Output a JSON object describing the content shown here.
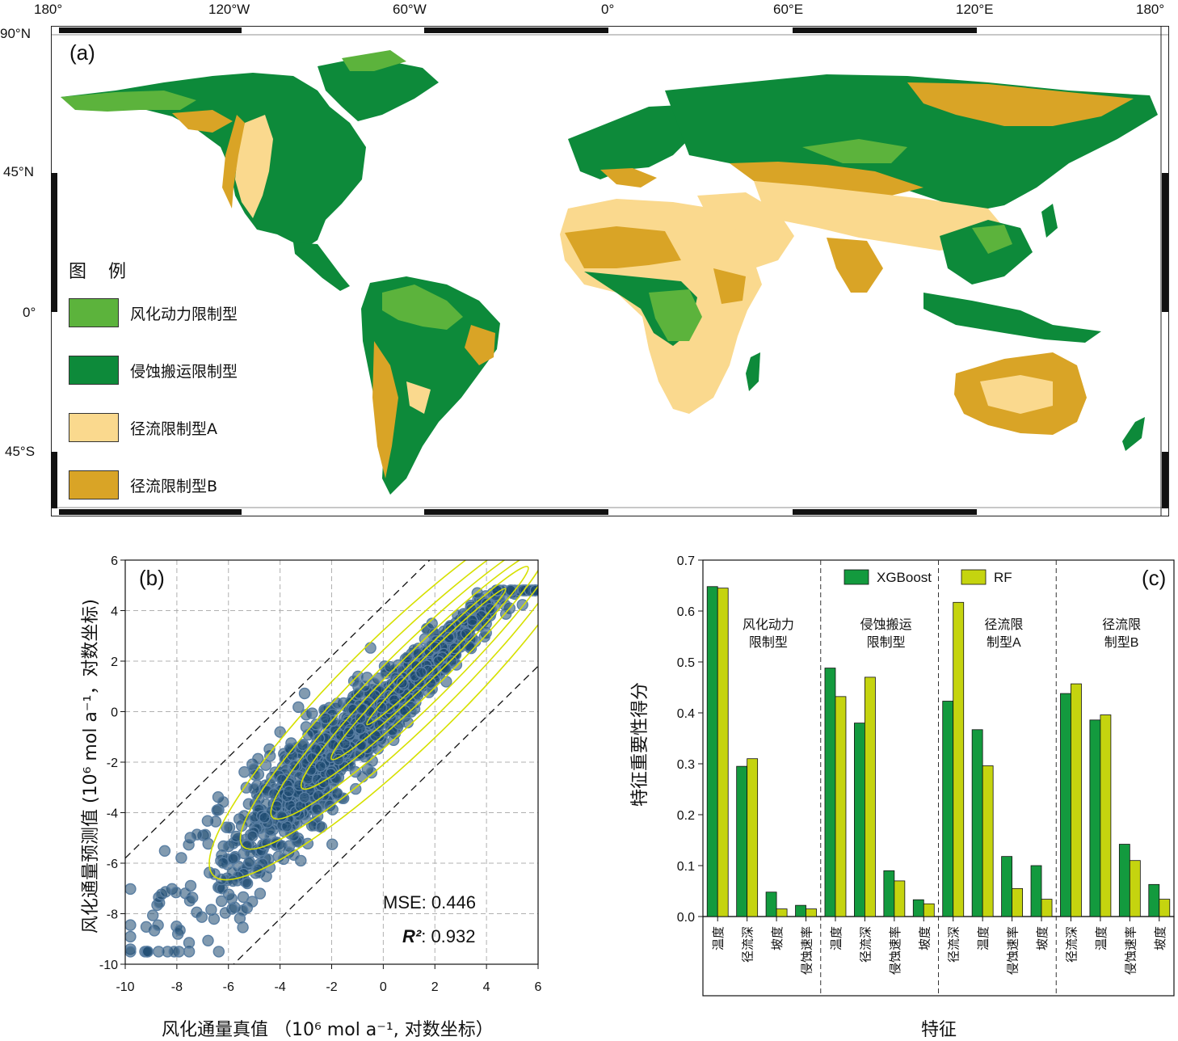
{
  "panel_a": {
    "label": "(a)",
    "lon_labels": [
      "180°",
      "120°W",
      "60°W",
      "0°",
      "60°E",
      "120°E",
      "180°"
    ],
    "lat_labels": [
      "90°N",
      "45°N",
      "0°",
      "45°S"
    ],
    "legend": {
      "title": "图 例",
      "items": [
        {
          "label": "风化动力限制型",
          "color": "#5cb33c"
        },
        {
          "label": "侵蚀搬运限制型",
          "color": "#0d8a3a"
        },
        {
          "label": "径流限制型A",
          "color": "#fad98e"
        },
        {
          "label": "径流限制型B",
          "color": "#d9a426"
        }
      ]
    }
  },
  "chart_data": [
    {
      "type": "scatter",
      "panel_label": "(b)",
      "xlabel": "风化通量真值 （10⁶ mol a⁻¹, 对数坐标）",
      "ylabel": "风化通量预测值 (10⁶ mol a⁻¹，对数坐标)",
      "xlim": [
        -10,
        6
      ],
      "ylim": [
        -10,
        6
      ],
      "xticks": [
        -10,
        -8,
        -6,
        -4,
        -2,
        0,
        2,
        4,
        6
      ],
      "yticks": [
        -10,
        -8,
        -6,
        -4,
        -2,
        0,
        2,
        4,
        6
      ],
      "grid": true,
      "mse_label": "MSE: 0.446",
      "r2_label": "R²",
      "r2_value": ": 0.932",
      "reference_lines": [
        {
          "name": "1:1 upper",
          "offset": 4.2
        },
        {
          "name": "1:1 lower",
          "offset": -4.2
        }
      ],
      "point_color": "#1c4870",
      "contour_color": "#d6e000"
    },
    {
      "type": "bar",
      "panel_label": "(c)",
      "xlabel": "特征",
      "ylabel": "特征重要性得分",
      "ylim": [
        0,
        0.7
      ],
      "yticks": [
        "0.0",
        "0.1",
        "0.2",
        "0.3",
        "0.4",
        "0.5",
        "0.6",
        "0.7"
      ],
      "legend": [
        {
          "name": "XGBoost",
          "color": "#139a3e"
        },
        {
          "name": "RF",
          "color": "#c5d40f"
        }
      ],
      "groups": [
        {
          "title_lines": [
            "风化动力",
            "限制型"
          ],
          "categories": [
            "温度",
            "径流深",
            "坡度",
            "侵蚀速率"
          ],
          "xgboost": [
            0.648,
            0.295,
            0.048,
            0.022
          ],
          "rf": [
            0.645,
            0.31,
            0.015,
            0.015
          ]
        },
        {
          "title_lines": [
            "侵蚀搬运",
            "限制型"
          ],
          "categories": [
            "温度",
            "径流深",
            "侵蚀速率",
            "坡度"
          ],
          "xgboost": [
            0.488,
            0.38,
            0.09,
            0.033
          ],
          "rf": [
            0.432,
            0.47,
            0.07,
            0.025
          ]
        },
        {
          "title_lines": [
            "径流限",
            "制型A"
          ],
          "categories": [
            "径流深",
            "温度",
            "侵蚀速率",
            "坡度"
          ],
          "xgboost": [
            0.423,
            0.367,
            0.118,
            0.1
          ],
          "rf": [
            0.617,
            0.296,
            0.055,
            0.034
          ]
        },
        {
          "title_lines": [
            "径流限",
            "制型B"
          ],
          "categories": [
            "径流深",
            "温度",
            "侵蚀速率",
            "坡度"
          ],
          "xgboost": [
            0.438,
            0.386,
            0.142,
            0.063
          ],
          "rf": [
            0.457,
            0.396,
            0.11,
            0.034
          ]
        }
      ]
    }
  ]
}
